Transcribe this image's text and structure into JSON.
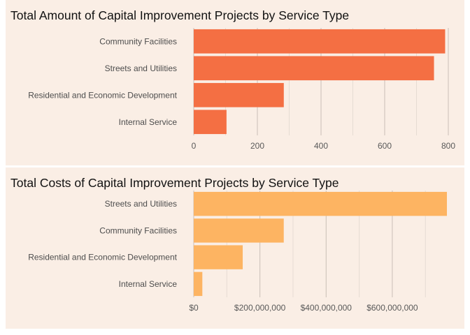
{
  "chart_data": [
    {
      "type": "bar",
      "orientation": "horizontal",
      "title": "Total Amount of Capital Improvement Projects by Service Type",
      "categories": [
        "Community Facilities",
        "Streets and Utilities",
        "Residential and Economic Development",
        "Internal Service"
      ],
      "values": [
        790,
        755,
        283,
        103
      ],
      "xlabel": "",
      "ylabel": "",
      "xlim": [
        0,
        800
      ],
      "xticks": [
        0,
        200,
        400,
        600,
        800
      ],
      "xtick_labels": [
        "0",
        "200",
        "400",
        "600",
        "800"
      ],
      "bar_color": "#f46f43",
      "background_color": "#faeee5",
      "grid": true
    },
    {
      "type": "bar",
      "orientation": "horizontal",
      "title": "Total Costs of Capital Improvement Projects by Service Type",
      "categories": [
        "Streets and Utilities",
        "Community Facilities",
        "Residential and Economic Development",
        "Internal Service"
      ],
      "values": [
        765000000,
        272000000,
        148000000,
        26000000
      ],
      "xlabel": "",
      "ylabel": "",
      "xlim": [
        0,
        765000000
      ],
      "xticks": [
        0,
        200000000,
        400000000,
        600000000
      ],
      "xtick_labels": [
        "$0",
        "$200,000,000",
        "$400,000,000",
        "$600,000,000"
      ],
      "bar_color": "#fdb462",
      "background_color": "#faeee5",
      "grid": true
    }
  ]
}
